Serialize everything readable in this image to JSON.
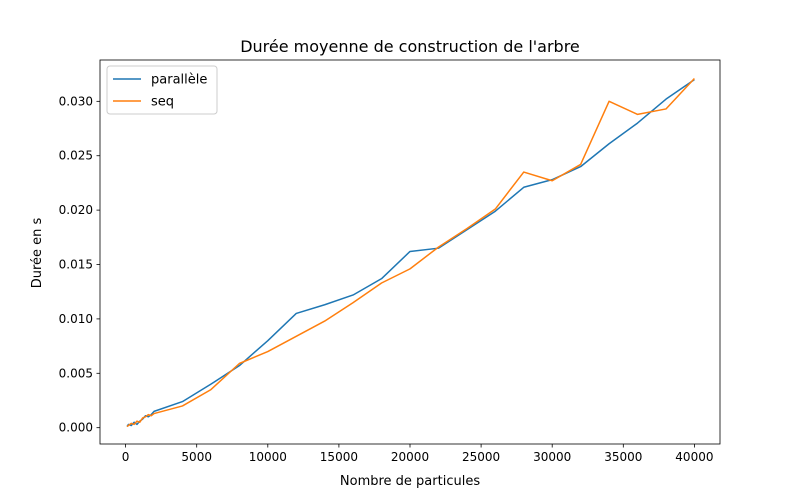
{
  "chart_data": {
    "type": "line",
    "title": "Durée moyenne de construction de l'arbre",
    "xlabel": "Nombre de particules",
    "ylabel": "Durée en s",
    "xlim": [
      -1800,
      41800
    ],
    "ylim": [
      -0.0015,
      0.0338
    ],
    "xticks": [
      0,
      5000,
      10000,
      15000,
      20000,
      25000,
      30000,
      35000,
      40000
    ],
    "xtick_labels": [
      "0",
      "5000",
      "10000",
      "15000",
      "20000",
      "25000",
      "30000",
      "35000",
      "40000"
    ],
    "yticks": [
      0.0,
      0.005,
      0.01,
      0.015,
      0.02,
      0.025,
      0.03
    ],
    "ytick_labels": [
      "0.000",
      "0.005",
      "0.010",
      "0.015",
      "0.020",
      "0.025",
      "0.030"
    ],
    "grid": false,
    "legend_position": "upper-left",
    "series": [
      {
        "name": "parallèle",
        "color": "#1f77b4",
        "x": [
          100,
          200,
          400,
          600,
          800,
          1000,
          1200,
          1400,
          1600,
          1800,
          2000,
          4000,
          6000,
          8000,
          10000,
          12000,
          14000,
          16000,
          18000,
          20000,
          22000,
          24000,
          26000,
          28000,
          30000,
          32000,
          34000,
          36000,
          38000,
          40000
        ],
        "y": [
          0.0001,
          0.0003,
          0.0002,
          0.0005,
          0.0003,
          0.0006,
          0.0008,
          0.0011,
          0.001,
          0.0012,
          0.0015,
          0.0024,
          0.004,
          0.0057,
          0.008,
          0.0105,
          0.0113,
          0.0122,
          0.0137,
          0.0162,
          0.0165,
          0.0182,
          0.0199,
          0.0221,
          0.0228,
          0.024,
          0.0261,
          0.028,
          0.0302,
          0.032
        ]
      },
      {
        "name": "seq",
        "color": "#ff7f0e",
        "x": [
          100,
          200,
          400,
          600,
          800,
          1000,
          1200,
          1400,
          1600,
          1800,
          2000,
          4000,
          6000,
          8000,
          10000,
          12000,
          14000,
          16000,
          18000,
          20000,
          22000,
          24000,
          26000,
          28000,
          30000,
          32000,
          34000,
          36000,
          38000,
          40000
        ],
        "y": [
          0.0001,
          0.0002,
          0.0004,
          0.0003,
          0.0006,
          0.0005,
          0.0009,
          0.001,
          0.0012,
          0.0011,
          0.0013,
          0.002,
          0.0035,
          0.0059,
          0.007,
          0.0084,
          0.0098,
          0.0115,
          0.0133,
          0.0146,
          0.0166,
          0.0183,
          0.0201,
          0.0235,
          0.0227,
          0.0242,
          0.03,
          0.0288,
          0.0293,
          0.0321
        ]
      }
    ]
  }
}
